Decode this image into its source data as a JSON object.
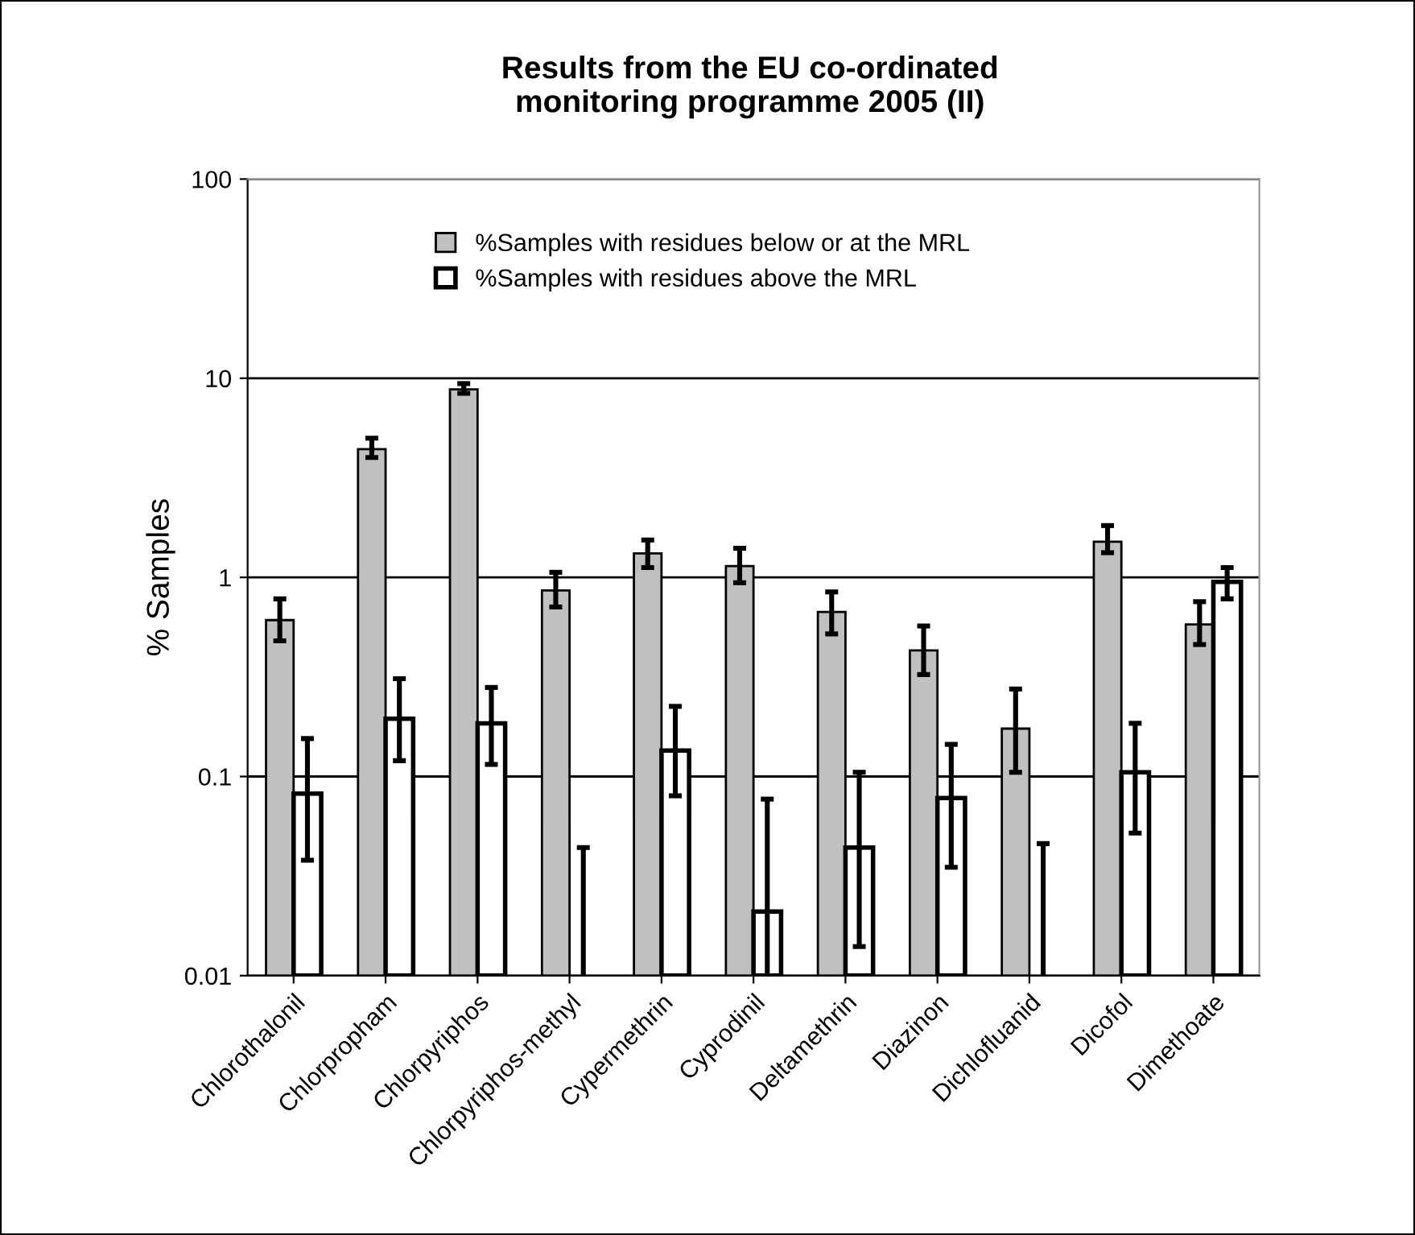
{
  "chart_data": {
    "type": "bar",
    "title": "Results from the EU co-ordinated\nmonitoring programme 2005 (II)",
    "ylabel": "% Samples",
    "categories": [
      "Chlorothalonil",
      "Chlorpropham",
      "Chlorpyriphos",
      "Chlorpyriphos-methyl",
      "Cypermethrin",
      "Cyprodinil",
      "Deltamethrin",
      "Diazinon",
      "Dichlofluanid",
      "Dicofol",
      "Dimethoate"
    ],
    "series": [
      {
        "name": "%Samples with residues below or at the MRL",
        "color": "#c0c0c0",
        "values": [
          0.61,
          4.4,
          8.8,
          0.86,
          1.32,
          1.14,
          0.67,
          0.43,
          0.174,
          1.51,
          0.58
        ],
        "errors": [
          [
            0.48,
            0.78
          ],
          [
            4.0,
            5.0
          ],
          [
            8.4,
            9.4
          ],
          [
            0.71,
            1.06
          ],
          [
            1.12,
            1.54
          ],
          [
            0.94,
            1.4
          ],
          [
            0.52,
            0.845
          ],
          [
            0.325,
            0.57
          ],
          [
            0.105,
            0.275
          ],
          [
            1.33,
            1.82
          ],
          [
            0.46,
            0.755
          ]
        ]
      },
      {
        "name": "%Samples with residues above the MRL",
        "color": "#ffffff",
        "values": [
          0.082,
          0.195,
          0.185,
          0.01,
          0.135,
          0.021,
          0.044,
          0.078,
          0.01,
          0.105,
          0.95
        ],
        "errors": [
          [
            0.038,
            0.155
          ],
          [
            0.12,
            0.31
          ],
          [
            0.115,
            0.28
          ],
          [
            0.01,
            0.044
          ],
          [
            0.08,
            0.225
          ],
          [
            0.01,
            0.077
          ],
          [
            0.014,
            0.105
          ],
          [
            0.035,
            0.145
          ],
          [
            0.01,
            0.046
          ],
          [
            0.052,
            0.185
          ],
          [
            0.78,
            1.12
          ]
        ]
      }
    ],
    "log": true,
    "ylim": [
      0.01,
      100
    ],
    "yticks": [
      0.01,
      0.1,
      1,
      10,
      100
    ],
    "grid": "y",
    "legend": "top"
  }
}
